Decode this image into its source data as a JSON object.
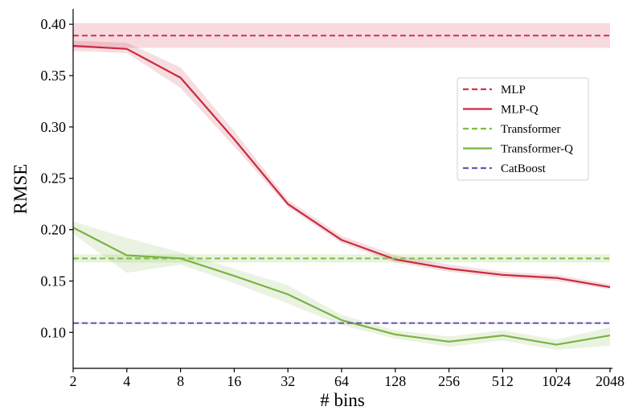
{
  "chart_data": {
    "type": "line",
    "title": "",
    "xlabel": "# bins",
    "ylabel": "RMSE",
    "x_scale": "log2",
    "x": [
      2,
      4,
      8,
      16,
      32,
      64,
      128,
      256,
      512,
      1024,
      2048
    ],
    "x_tick_labels": [
      "2",
      "4",
      "8",
      "16",
      "32",
      "64",
      "128",
      "256",
      "512",
      "1024",
      "2048"
    ],
    "ylim": [
      0.065,
      0.415
    ],
    "y_ticks": [
      0.1,
      0.15,
      0.2,
      0.25,
      0.3,
      0.35,
      0.4
    ],
    "y_tick_labels": [
      "0.10",
      "0.15",
      "0.20",
      "0.25",
      "0.30",
      "0.35",
      "0.40"
    ],
    "grid": false,
    "legend_position": "right",
    "series": [
      {
        "name": "MLP",
        "style": "dashed",
        "color": "#d1344b",
        "constant": 0.389,
        "band": [
          0.377,
          0.401
        ]
      },
      {
        "name": "MLP-Q",
        "style": "solid",
        "color": "#c92a40",
        "values": [
          0.379,
          0.376,
          0.348,
          0.288,
          0.225,
          0.19,
          0.171,
          0.162,
          0.156,
          0.153,
          0.144
        ],
        "lower": [
          0.374,
          0.372,
          0.338,
          0.281,
          0.222,
          0.187,
          0.168,
          0.159,
          0.153,
          0.15,
          0.142
        ],
        "upper": [
          0.384,
          0.382,
          0.358,
          0.296,
          0.229,
          0.194,
          0.175,
          0.166,
          0.159,
          0.156,
          0.147
        ]
      },
      {
        "name": "Transformer",
        "style": "dashed",
        "color": "#7fbd46",
        "constant": 0.172,
        "band": [
          0.168,
          0.176
        ]
      },
      {
        "name": "Transformer-Q",
        "style": "solid",
        "color": "#7ab342",
        "values": [
          0.202,
          0.175,
          0.172,
          0.155,
          0.137,
          0.112,
          0.098,
          0.091,
          0.097,
          0.088,
          0.097
        ],
        "lower": [
          0.196,
          0.158,
          0.166,
          0.148,
          0.128,
          0.107,
          0.094,
          0.086,
          0.092,
          0.083,
          0.087
        ],
        "upper": [
          0.208,
          0.192,
          0.178,
          0.162,
          0.146,
          0.117,
          0.102,
          0.096,
          0.102,
          0.093,
          0.105
        ]
      },
      {
        "name": "CatBoost",
        "style": "dashed",
        "color": "#6a58b5",
        "constant": 0.109,
        "band": [
          0.108,
          0.11
        ]
      }
    ]
  }
}
